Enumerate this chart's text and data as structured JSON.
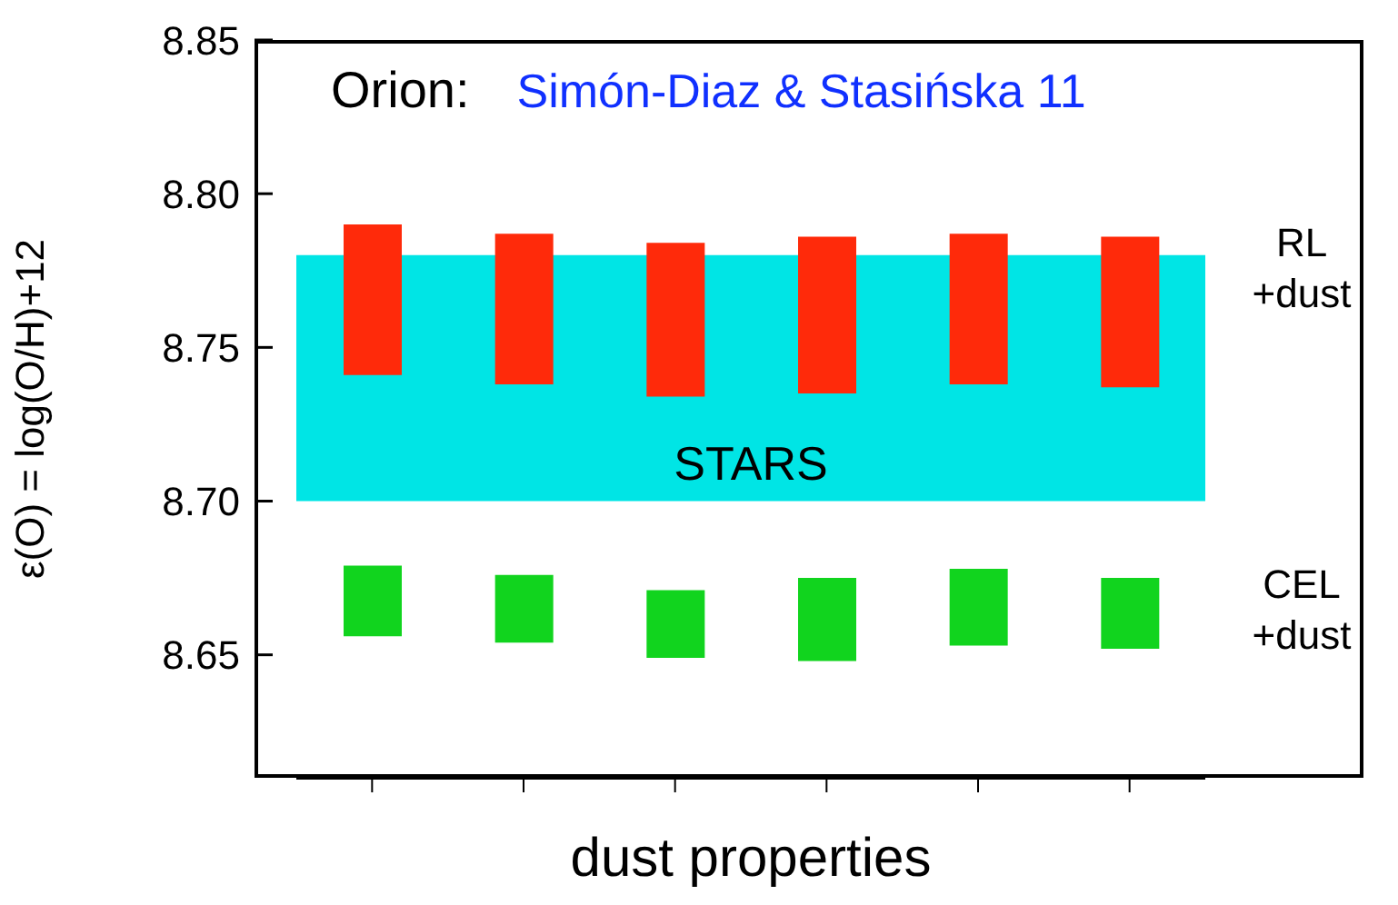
{
  "chart_data": {
    "type": "bar",
    "xlabel": "dust properties",
    "ylabel": "ε(O)  =  log(O/H)+12",
    "annotations": [
      "Orion:",
      "Simón-Diaz & Stasińska 11"
    ],
    "categories": [
      null,
      null,
      null,
      null,
      null,
      null
    ],
    "series": [
      {
        "name": "RL +dust",
        "color": "#ff2a0a",
        "base": [
          8.741,
          8.738,
          8.734,
          8.735,
          8.738,
          8.737
        ],
        "values": [
          0.049,
          0.049,
          0.05,
          0.051,
          0.049,
          0.049
        ]
      },
      {
        "name": "CEL +dust",
        "color": "#11d41e",
        "base": [
          8.656,
          8.654,
          8.649,
          8.648,
          8.653,
          8.652
        ],
        "values": [
          0.023,
          0.022,
          0.022,
          0.027,
          0.025,
          0.023
        ]
      }
    ],
    "bands": [
      {
        "axis": "y",
        "from": 8.7,
        "to": 8.78,
        "label": "STARS",
        "color": "#00e5e5"
      }
    ],
    "ylim": [
      8.61,
      8.85
    ],
    "yticks": [
      {
        "value": 8.65,
        "label": "8.65"
      },
      {
        "value": 8.7,
        "label": "8.70"
      },
      {
        "value": 8.75,
        "label": "8.75"
      },
      {
        "value": 8.8,
        "label": "8.80"
      },
      {
        "value": 8.85,
        "label": "8.85"
      }
    ],
    "grid": false,
    "legend": false
  }
}
